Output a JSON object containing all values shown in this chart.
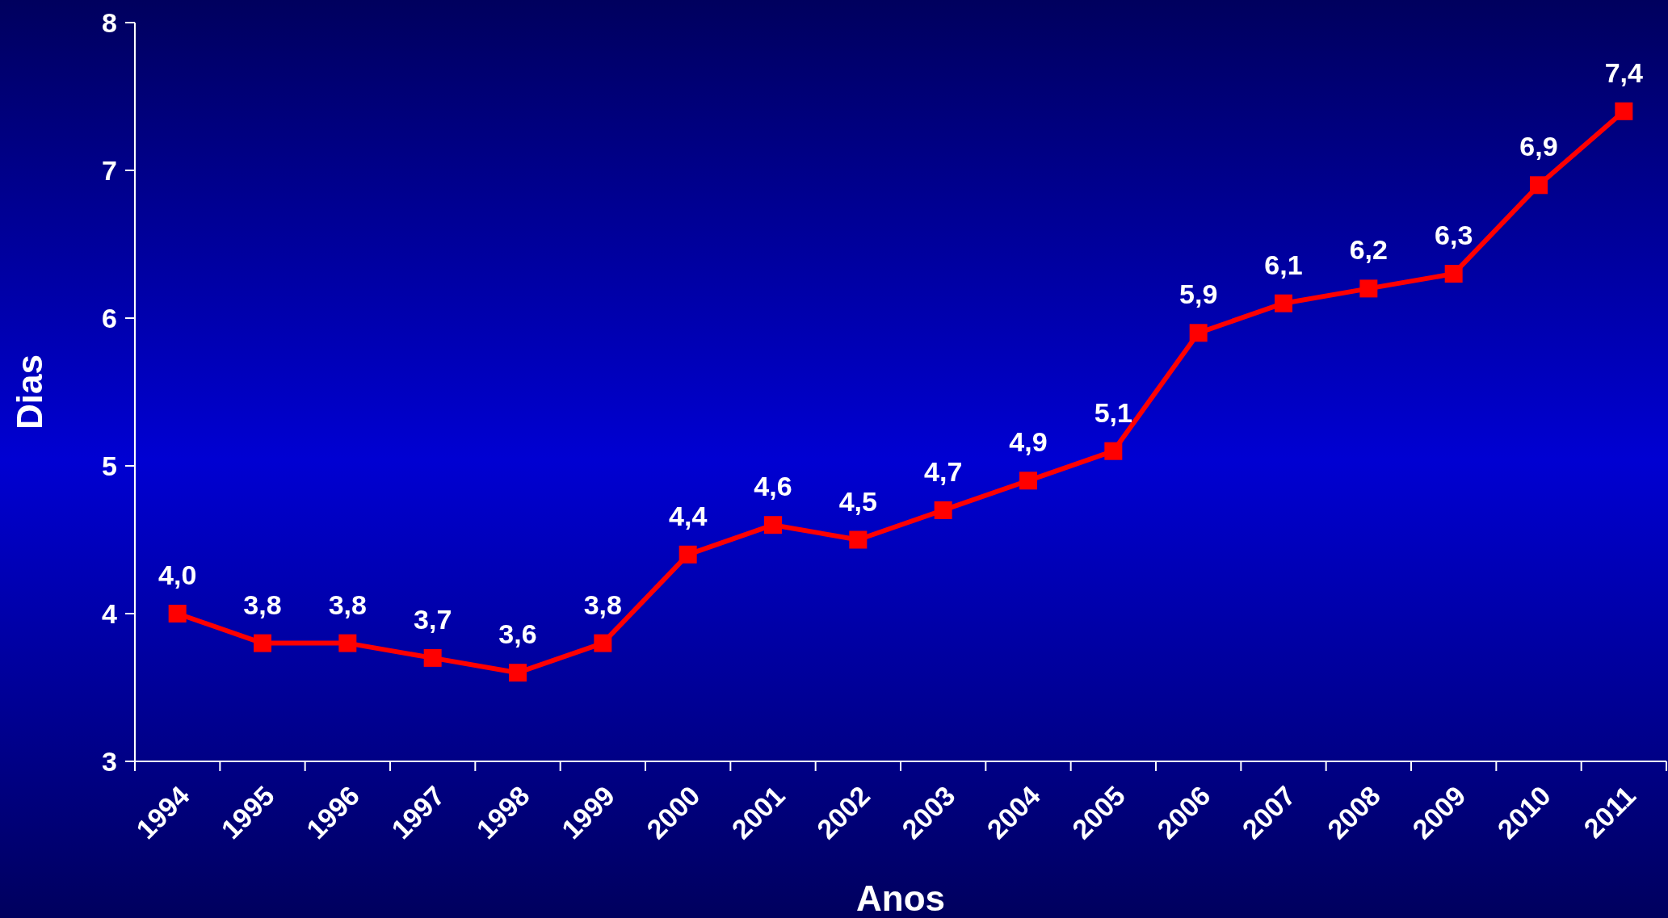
{
  "chart_data": {
    "type": "line",
    "xlabel": "Anos",
    "ylabel": "Dias",
    "categories": [
      "1994",
      "1995",
      "1996",
      "1997",
      "1998",
      "1999",
      "2000",
      "2001",
      "2002",
      "2003",
      "2004",
      "2005",
      "2006",
      "2007",
      "2008",
      "2009",
      "2010",
      "2011"
    ],
    "values": [
      4.0,
      3.8,
      3.8,
      3.7,
      3.6,
      3.8,
      4.4,
      4.6,
      4.5,
      4.7,
      4.9,
      5.1,
      5.9,
      6.1,
      6.2,
      6.3,
      6.9,
      7.4
    ],
    "value_labels": [
      "4,0",
      "3,8",
      "3,8",
      "3,7",
      "3,6",
      "3,8",
      "4,4",
      "4,6",
      "4,5",
      "4,7",
      "4,9",
      "5,1",
      "5,9",
      "6,1",
      "6,2",
      "6,3",
      "6,9",
      "7,4"
    ],
    "color": "#ff0000",
    "marker": "square",
    "line_style": "solid",
    "ylim": [
      3,
      8
    ],
    "yticks": [
      3,
      4,
      5,
      6,
      7,
      8
    ],
    "grid": false
  }
}
